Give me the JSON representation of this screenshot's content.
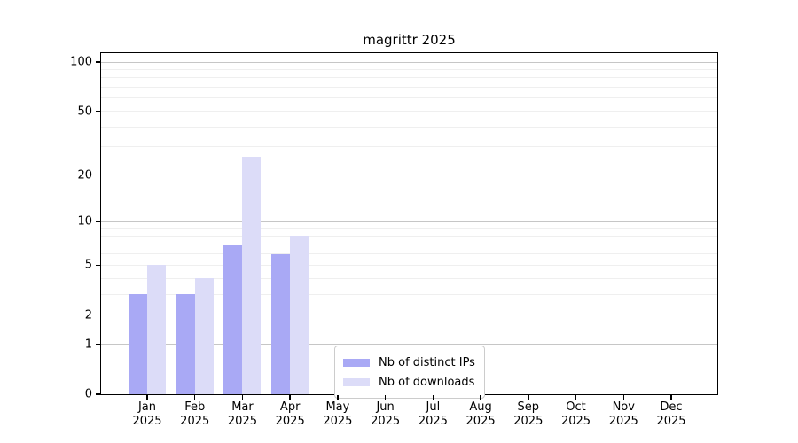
{
  "chart_data": {
    "type": "bar",
    "title": "magrittr 2025",
    "year_label": "2025",
    "categories": [
      "Jan",
      "Feb",
      "Mar",
      "Apr",
      "May",
      "Jun",
      "Jul",
      "Aug",
      "Sep",
      "Oct",
      "Nov",
      "Dec"
    ],
    "series": [
      {
        "name": "Nb of distinct IPs",
        "color": "#a9a9f5",
        "values": [
          3,
          3,
          7,
          6,
          0,
          0,
          0,
          0,
          0,
          0,
          0,
          0
        ]
      },
      {
        "name": "Nb of downloads",
        "color": "#dcdcf8",
        "values": [
          5,
          4,
          26,
          8,
          0,
          0,
          0,
          0,
          0,
          0,
          0,
          0
        ]
      }
    ],
    "y_axis": {
      "scale": "log1p",
      "ticks": [
        0,
        1,
        2,
        5,
        10,
        20,
        50,
        100
      ],
      "range": [
        0,
        100
      ],
      "minor_gridlines": [
        2,
        3,
        4,
        5,
        6,
        7,
        8,
        9,
        20,
        30,
        40,
        50,
        60,
        70,
        80,
        90
      ],
      "major_gridlines": [
        1,
        10,
        100
      ]
    },
    "x_axis": {
      "label_line2": "2025"
    },
    "legend": {
      "position": "inside-bottom-center",
      "entries": [
        "Nb of distinct IPs",
        "Nb of downloads"
      ]
    },
    "colors": {
      "distinct_ips": "#a9a9f5",
      "downloads": "#dcdcf8",
      "minor_grid": "#efefef",
      "major_grid": "#c6c6c6",
      "axis": "#000000",
      "background": "#ffffff"
    }
  }
}
